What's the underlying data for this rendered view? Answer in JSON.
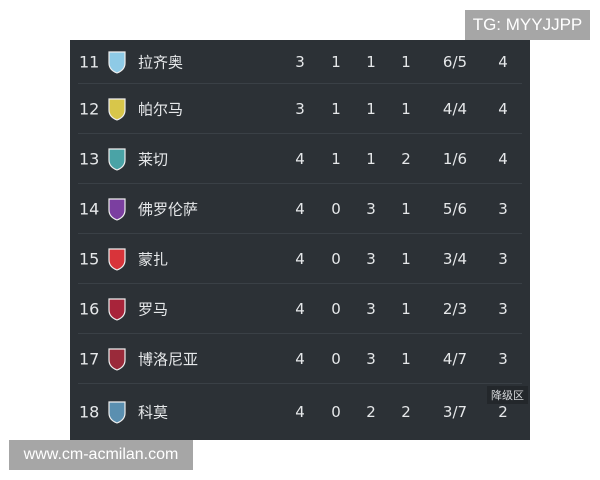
{
  "watermarks": {
    "tg": "TG: MYYJJPP",
    "url": "www.cm-acmilan.com"
  },
  "relegation_label": "降级区",
  "rows": [
    {
      "rank": "11",
      "team": "拉齐奥",
      "logo": "lazio-crest-icon",
      "color": "#8ecae6",
      "p": "3",
      "w": "1",
      "d": "1",
      "l": "1",
      "goals": "6/5",
      "pts": "4"
    },
    {
      "rank": "12",
      "team": "帕尔马",
      "logo": "parma-crest-icon",
      "color": "#d8c64a",
      "p": "3",
      "w": "1",
      "d": "1",
      "l": "1",
      "goals": "4/4",
      "pts": "4"
    },
    {
      "rank": "13",
      "team": "莱切",
      "logo": "lecce-crest-icon",
      "color": "#4aa3a6",
      "p": "4",
      "w": "1",
      "d": "1",
      "l": "2",
      "goals": "1/6",
      "pts": "4"
    },
    {
      "rank": "14",
      "team": "佛罗伦萨",
      "logo": "fiorentina-crest-icon",
      "color": "#7b3fa0",
      "p": "4",
      "w": "0",
      "d": "3",
      "l": "1",
      "goals": "5/6",
      "pts": "3"
    },
    {
      "rank": "15",
      "team": "蒙扎",
      "logo": "monza-crest-icon",
      "color": "#d8343a",
      "p": "4",
      "w": "0",
      "d": "3",
      "l": "1",
      "goals": "3/4",
      "pts": "3"
    },
    {
      "rank": "16",
      "team": "罗马",
      "logo": "roma-crest-icon",
      "color": "#a8243a",
      "p": "4",
      "w": "0",
      "d": "3",
      "l": "1",
      "goals": "2/3",
      "pts": "3"
    },
    {
      "rank": "17",
      "team": "博洛尼亚",
      "logo": "bologna-crest-icon",
      "color": "#9a2a3a",
      "p": "4",
      "w": "0",
      "d": "3",
      "l": "1",
      "goals": "4/7",
      "pts": "3"
    },
    {
      "rank": "18",
      "team": "科莫",
      "logo": "como-crest-icon",
      "color": "#5a8fb0",
      "p": "4",
      "w": "0",
      "d": "2",
      "l": "2",
      "goals": "3/7",
      "pts": "2"
    }
  ]
}
